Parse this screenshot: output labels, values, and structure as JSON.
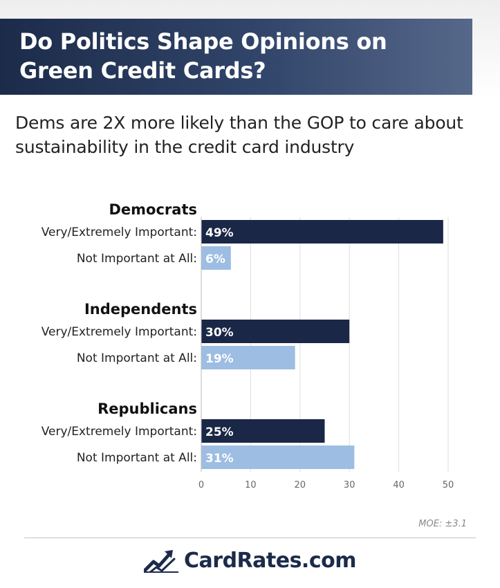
{
  "header": {
    "title": "Do Politics Shape Opinions on Green Credit Cards?",
    "subtitle": "Dems are 2X more likely than the GOP to care about sustainability in the credit card industry"
  },
  "colors": {
    "very_important": "#1a2747",
    "not_important": "#9dbde3",
    "grid": "#dddddd"
  },
  "chart_data": {
    "type": "bar",
    "orientation": "horizontal",
    "title": "",
    "xlabel": "",
    "ylabel": "",
    "xlim": [
      0,
      50
    ],
    "xticks": [
      0,
      10,
      20,
      30,
      40,
      50
    ],
    "grid": "vertical",
    "groups": [
      {
        "name": "Democrats",
        "bars": [
          {
            "label": "Very/Extremely Important:",
            "value": 49,
            "value_label": "49%",
            "kind": "very_important"
          },
          {
            "label": "Not Important at All:",
            "value": 6,
            "value_label": "6%",
            "kind": "not_important"
          }
        ]
      },
      {
        "name": "Independents",
        "bars": [
          {
            "label": "Very/Extremely Important:",
            "value": 30,
            "value_label": "30%",
            "kind": "very_important"
          },
          {
            "label": "Not Important at All:",
            "value": 19,
            "value_label": "19%",
            "kind": "not_important"
          }
        ]
      },
      {
        "name": "Republicans",
        "bars": [
          {
            "label": "Very/Extremely Important:",
            "value": 25,
            "value_label": "25%",
            "kind": "very_important"
          },
          {
            "label": "Not Important at All:",
            "value": 31,
            "value_label": "31%",
            "kind": "not_important"
          }
        ]
      }
    ]
  },
  "footer": {
    "moe": "MOE: ±3.1",
    "brand": "CardRates.com",
    "logo_icon": "trending-chart-icon"
  }
}
